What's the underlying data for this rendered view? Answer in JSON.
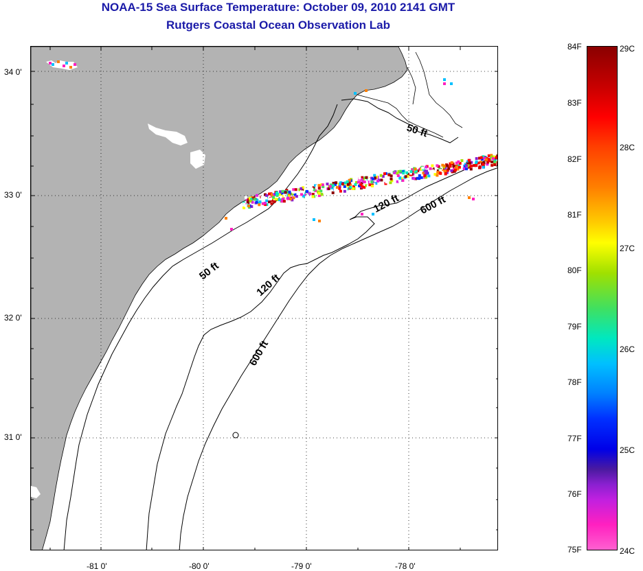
{
  "header": {
    "title": "NOAA-15 Sea Surface Temperature:  October 09, 2010 2141 GMT",
    "subtitle": "Rutgers Coastal Ocean Observation Lab"
  },
  "axes": {
    "lat_labels": [
      "34 0'",
      "33 0'",
      "32 0'",
      "31 0'"
    ],
    "lon_labels": [
      "-81 0'",
      "-80 0'",
      "-79 0'",
      "-78 0'"
    ]
  },
  "contours": {
    "labels": [
      "50 ft",
      "50 ft",
      "120 ft",
      "120 ft",
      "600 ft",
      "600 ft"
    ]
  },
  "colorbar": {
    "fahrenheit": [
      "84F",
      "83F",
      "82F",
      "81F",
      "80F",
      "79F",
      "78F",
      "77F",
      "76F",
      "75F"
    ],
    "celsius": [
      "29C",
      "28C",
      "27C",
      "26C",
      "25C",
      "24C"
    ]
  },
  "colors": {
    "land": "#b3b3b3",
    "ocean": "#ffffff",
    "title": "#1a1aa8",
    "grid": "#000000"
  }
}
